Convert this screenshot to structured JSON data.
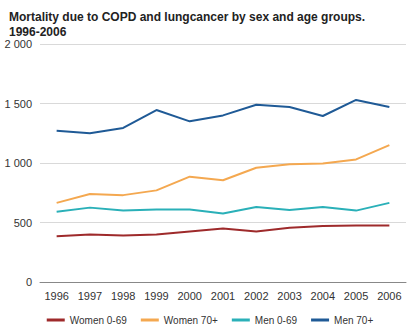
{
  "chart_data": {
    "type": "line",
    "title": "Mortality due to COPD and lungcancer by sex and age groups.\n1996-2006",
    "categories": [
      "1996",
      "1997",
      "1998",
      "1999",
      "2000",
      "2001",
      "2002",
      "2003",
      "2004",
      "2005",
      "2006"
    ],
    "series": [
      {
        "name": "Women 0-69",
        "color": "#9e2a2b",
        "values": [
          385,
          400,
          390,
          400,
          425,
          450,
          425,
          455,
          470,
          475,
          475
        ]
      },
      {
        "name": "Women 70+",
        "color": "#f4a850",
        "values": [
          665,
          740,
          730,
          770,
          885,
          855,
          960,
          990,
          995,
          1030,
          1150
        ]
      },
      {
        "name": "Men 0-69",
        "color": "#2ab0b8",
        "values": [
          590,
          625,
          600,
          610,
          610,
          575,
          630,
          605,
          630,
          600,
          665
        ]
      },
      {
        "name": "Men 70+",
        "color": "#1f5a96",
        "values": [
          1270,
          1250,
          1295,
          1445,
          1350,
          1400,
          1490,
          1470,
          1395,
          1530,
          1470
        ]
      }
    ],
    "ylim": [
      0,
      2000
    ],
    "yticks": [
      0,
      500,
      {
        "value": 1000,
        "label": "1 000"
      },
      {
        "value": 1500,
        "label": "1 500"
      },
      {
        "value": 2000,
        "label": "2 000"
      }
    ],
    "grid": true,
    "legend": "bottom"
  }
}
